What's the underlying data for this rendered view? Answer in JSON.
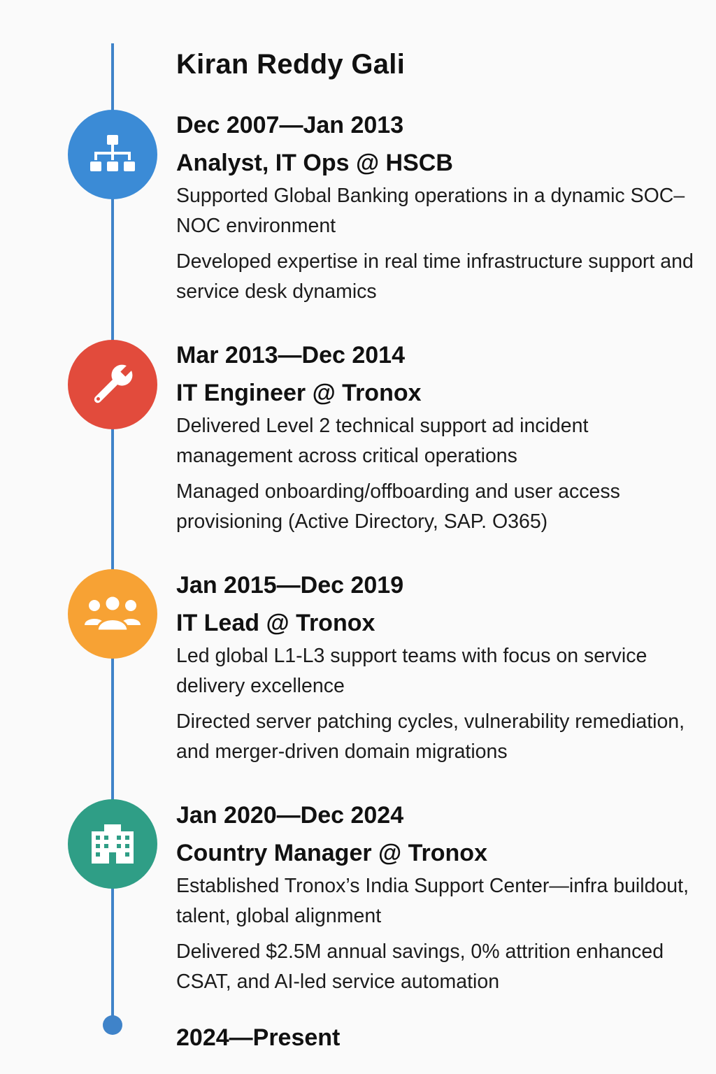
{
  "name": "Kiran Reddy Gali",
  "colors": {
    "line": "#3f83c9",
    "node_1": "#3b8bd6",
    "node_2": "#e24b3c",
    "node_3": "#f7a234",
    "node_4": "#2f9e86"
  },
  "entries": [
    {
      "period": "Dec 2007—Jan 2013",
      "role": "Analyst, IT Ops @ HSCB",
      "icon": "hierarchy-icon",
      "bullets": [
        "Supported Global Banking operations in a dynamic SOC–NOC environment",
        "Developed expertise in real time infrastructure support and service desk dynamics"
      ]
    },
    {
      "period": "Mar 2013—Dec 2014",
      "role": "IT Engineer @ Tronox",
      "icon": "wrench-icon",
      "bullets": [
        "Delivered Level 2 technical support ad incident management across critical operations",
        "Managed onboarding/offboarding and user access provisioning (Active Directory, SAP. O365)"
      ]
    },
    {
      "period": "Jan 2015—Dec 2019",
      "role": "IT Lead @ Tronox",
      "icon": "team-icon",
      "bullets": [
        "Led global L1-L3 support teams with focus on service delivery excellence",
        "Directed server patching cycles, vulnerability remediation, and merger-driven domain migrations"
      ]
    },
    {
      "period": "Jan 2020—Dec 2024",
      "role": "Country Manager @ Tronox",
      "icon": "building-icon",
      "bullets": [
        "Established Tronox’s India Support Center—infra buildout, talent, global alignment",
        "Delivered $2.5M annual savings, 0% attrition enhanced CSAT, and AI-led service automation"
      ]
    }
  ],
  "present": "2024—Present"
}
